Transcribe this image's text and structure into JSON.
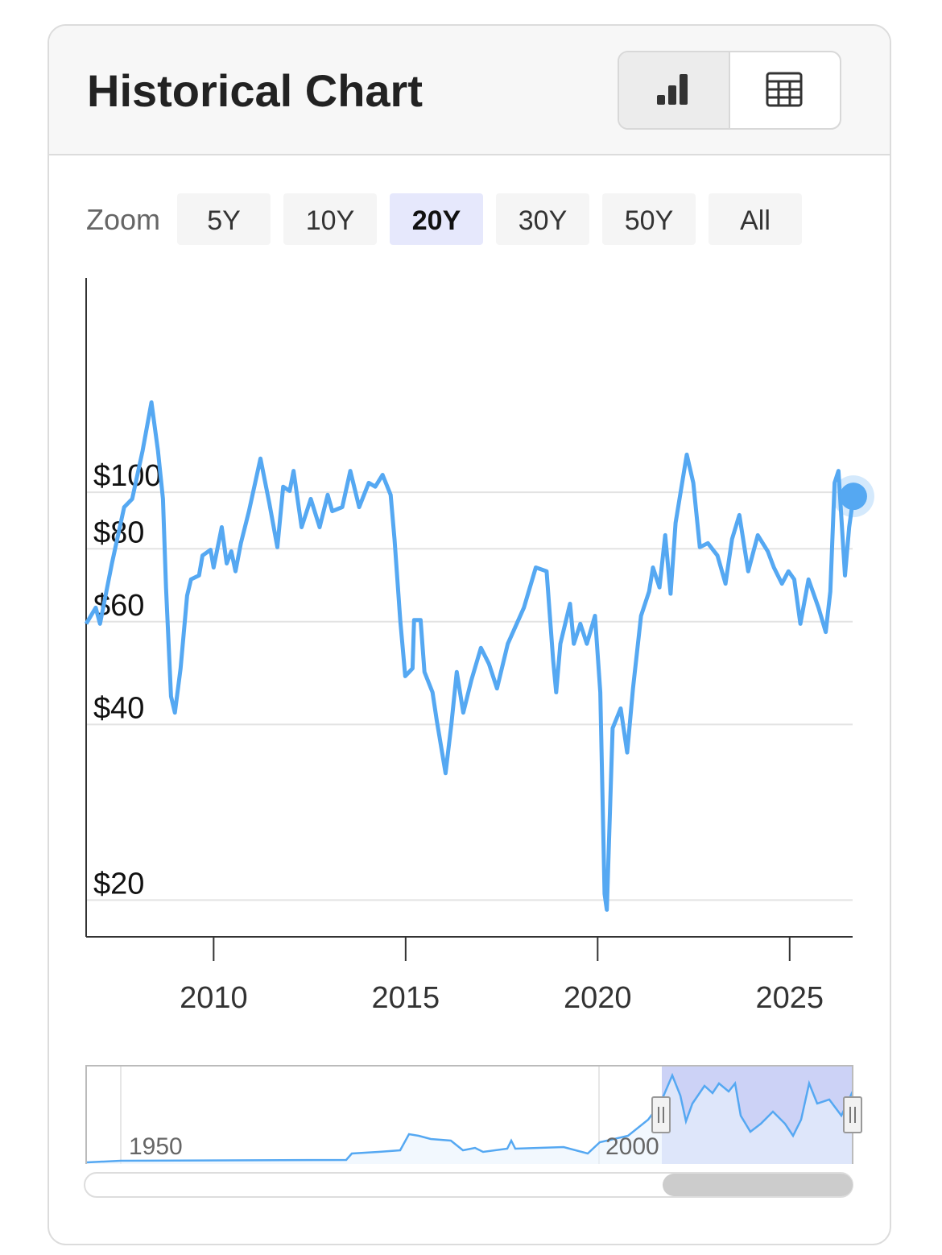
{
  "header": {
    "title": "Historical Chart"
  },
  "zoom": {
    "label": "Zoom",
    "options": [
      "5Y",
      "10Y",
      "20Y",
      "30Y",
      "50Y",
      "All"
    ],
    "active": 2
  },
  "chart_data": {
    "type": "line",
    "x": [
      2006.68,
      2006.93,
      2007.04,
      2007.35,
      2007.67,
      2007.88,
      2008.15,
      2008.38,
      2008.55,
      2008.68,
      2008.76,
      2008.89,
      2008.99,
      2009.14,
      2009.31,
      2009.41,
      2009.62,
      2009.71,
      2009.92,
      2010.0,
      2010.21,
      2010.34,
      2010.46,
      2010.57,
      2010.71,
      2010.92,
      2011.22,
      2011.45,
      2011.66,
      2011.81,
      2011.98,
      2012.08,
      2012.29,
      2012.53,
      2012.76,
      2012.97,
      2013.09,
      2013.35,
      2013.56,
      2013.79,
      2014.04,
      2014.21,
      2014.4,
      2014.61,
      2014.71,
      2014.86,
      2014.99,
      2015.18,
      2015.22,
      2015.39,
      2015.49,
      2015.7,
      2015.81,
      2016.04,
      2016.19,
      2016.33,
      2016.5,
      2016.71,
      2016.96,
      2017.17,
      2017.38,
      2017.66,
      2018.08,
      2018.39,
      2018.67,
      2018.84,
      2018.92,
      2019.03,
      2019.28,
      2019.38,
      2019.55,
      2019.72,
      2019.93,
      2020.07,
      2020.18,
      2020.24,
      2020.39,
      2020.6,
      2020.77,
      2020.92,
      2021.13,
      2021.34,
      2021.44,
      2021.61,
      2021.76,
      2021.9,
      2022.03,
      2022.32,
      2022.49,
      2022.66,
      2022.87,
      2023.12,
      2023.33,
      2023.5,
      2023.69,
      2023.92,
      2024.17,
      2024.43,
      2024.59,
      2024.8,
      2024.97,
      2025.12,
      2025.28,
      2025.49,
      2025.75,
      2025.94,
      2026.06,
      2026.17,
      2026.27,
      2026.44,
      2026.55,
      2026.66
    ],
    "values": [
      59.5,
      63.4,
      59.5,
      75.5,
      94.3,
      97.4,
      117.8,
      142.6,
      117.8,
      97.4,
      68.7,
      44.7,
      41.9,
      49.9,
      66.5,
      70.9,
      72.0,
      77.9,
      79.7,
      74.3,
      87.1,
      75.5,
      79.2,
      73.2,
      81.8,
      92.8,
      114.2,
      95.8,
      80.5,
      102.2,
      100.5,
      108.8,
      87.1,
      97.4,
      87.1,
      99.0,
      92.8,
      94.3,
      108.8,
      94.3,
      103.8,
      102.2,
      107.1,
      99.0,
      83.1,
      60.4,
      48.4,
      49.9,
      60.4,
      60.4,
      49.2,
      45.4,
      40.6,
      33.0,
      40.0,
      49.2,
      41.9,
      47.6,
      54.1,
      50.8,
      46.1,
      55.0,
      63.4,
      74.3,
      73.2,
      51.6,
      45.4,
      55.0,
      64.4,
      55.0,
      59.5,
      55.0,
      61.4,
      45.4,
      20.5,
      19.25,
      39.4,
      42.6,
      35.8,
      46.1,
      61.4,
      67.6,
      74.3,
      68.7,
      84.4,
      67.0,
      88.6,
      116.0,
      103.8,
      80.5,
      81.8,
      77.9,
      69.7,
      83.1,
      91.4,
      73.2,
      84.4,
      79.2,
      74.3,
      69.7,
      73.2,
      70.9,
      59.5,
      70.9,
      63.4,
      57.6,
      67.6,
      103.8,
      108.8,
      72.0,
      87.1,
      98.4
    ],
    "color": "#55a8f2",
    "log_scale": true,
    "grid": true,
    "xlim": [
      2006.68,
      2026.64
    ],
    "xticks": [
      2010,
      2015,
      2020,
      2025
    ],
    "ylim": [
      17.3,
      233
    ],
    "yticks": [
      {
        "value": 20,
        "label": "$20"
      },
      {
        "value": 40,
        "label": "$40"
      },
      {
        "value": 60,
        "label": "$60"
      },
      {
        "value": 80,
        "label": "$80"
      },
      {
        "value": 100,
        "label": "$100"
      }
    ]
  },
  "navigator": {
    "labels": [
      "1950",
      "2000"
    ]
  }
}
